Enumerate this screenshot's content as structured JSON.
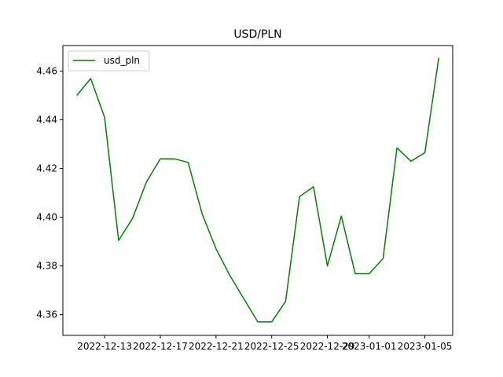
{
  "chart_data": {
    "type": "line",
    "title": "USD/PLN",
    "xlabel": "",
    "ylabel": "",
    "x": [
      "2022-12-11",
      "2022-12-12",
      "2022-12-13",
      "2022-12-14",
      "2022-12-15",
      "2022-12-16",
      "2022-12-17",
      "2022-12-18",
      "2022-12-19",
      "2022-12-20",
      "2022-12-21",
      "2022-12-22",
      "2022-12-23",
      "2022-12-24",
      "2022-12-25",
      "2022-12-26",
      "2022-12-27",
      "2022-12-28",
      "2022-12-29",
      "2022-12-30",
      "2022-12-31",
      "2023-01-01",
      "2023-01-02",
      "2023-01-03",
      "2023-01-04",
      "2023-01-05",
      "2023-01-06"
    ],
    "series": [
      {
        "name": "usd_pln",
        "color": "#008000",
        "values": [
          4.45,
          4.457,
          4.441,
          4.3905,
          4.3995,
          4.4145,
          4.424,
          4.424,
          4.4225,
          4.4015,
          4.387,
          4.376,
          4.3665,
          4.357,
          4.357,
          4.3655,
          4.4085,
          4.4125,
          4.38,
          4.4005,
          4.3768,
          4.3768,
          4.383,
          4.4285,
          4.423,
          4.4265,
          4.4655
        ]
      }
    ],
    "xlim": [
      "2022-12-10",
      "2023-01-07"
    ],
    "ylim": [
      4.3515,
      4.4705
    ],
    "x_ticks": [
      "2022-12-13",
      "2022-12-17",
      "2022-12-21",
      "2022-12-25",
      "2022-12-29",
      "2023-01-01",
      "2023-01-05"
    ],
    "x_tick_labels": [
      "2022-12-13",
      "2022-12-17",
      "2022-12-21",
      "2022-12-25",
      "2022-12-29",
      "2023-01-01",
      "2023-01-05"
    ],
    "y_ticks": [
      4.36,
      4.38,
      4.4,
      4.42,
      4.44,
      4.46
    ],
    "y_tick_labels": [
      "4.36",
      "4.38",
      "4.40",
      "4.42",
      "4.44",
      "4.46"
    ],
    "grid": false,
    "legend": "upper-left"
  }
}
